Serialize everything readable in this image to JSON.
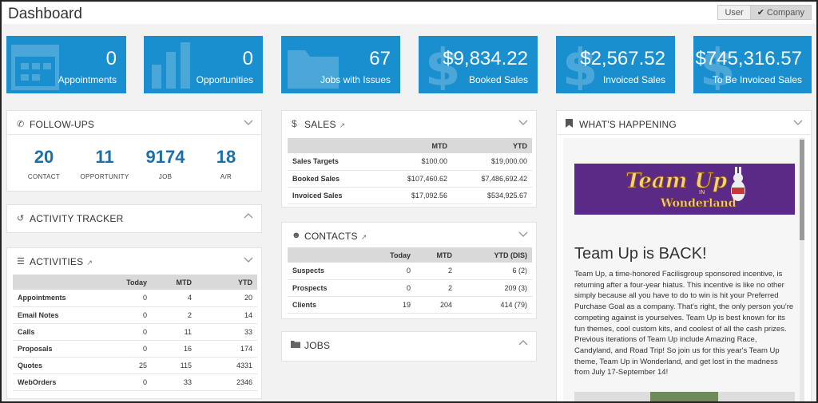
{
  "header": {
    "title": "Dashboard",
    "toggle_user": "User",
    "toggle_company": "Company"
  },
  "tiles": [
    {
      "value": "0",
      "label": "Appointments"
    },
    {
      "value": "0",
      "label": "Opportunities"
    },
    {
      "value": "67",
      "label": "Jobs with Issues"
    },
    {
      "value": "$9,834.22",
      "label": "Booked Sales"
    },
    {
      "value": "$2,567.52",
      "label": "Invoiced Sales"
    },
    {
      "value": "$745,316.57",
      "label": "To Be Invoiced Sales"
    }
  ],
  "followups": {
    "title": "FOLLOW-UPS",
    "items": [
      {
        "value": "20",
        "label": "CONTACT"
      },
      {
        "value": "11",
        "label": "OPPORTUNITY"
      },
      {
        "value": "9174",
        "label": "JOB"
      },
      {
        "value": "18",
        "label": "A/R"
      }
    ]
  },
  "activity_tracker": {
    "title": "ACTIVITY TRACKER"
  },
  "activities": {
    "title": "ACTIVITIES",
    "headers": [
      "",
      "Today",
      "MTD",
      "YTD"
    ],
    "rows": [
      [
        "Appointments",
        "0",
        "4",
        "20"
      ],
      [
        "Email Notes",
        "0",
        "2",
        "14"
      ],
      [
        "Calls",
        "0",
        "11",
        "33"
      ],
      [
        "Proposals",
        "0",
        "16",
        "174"
      ],
      [
        "Quotes",
        "25",
        "115",
        "4331"
      ],
      [
        "WebOrders",
        "0",
        "33",
        "2346"
      ]
    ]
  },
  "sales": {
    "title": "SALES",
    "headers": [
      "",
      "MTD",
      "YTD"
    ],
    "rows": [
      [
        "Sales Targets",
        "$100.00",
        "$19,000.00"
      ],
      [
        "Booked Sales",
        "$107,460.62",
        "$7,486,692.42"
      ],
      [
        "Invoiced Sales",
        "$17,092.56",
        "$534,925.67"
      ]
    ]
  },
  "contacts": {
    "title": "CONTACTS",
    "headers": [
      "",
      "Today",
      "MTD",
      "YTD (DIS)"
    ],
    "rows": [
      [
        "Suspects",
        "0",
        "2",
        "6 (2)"
      ],
      [
        "Prospects",
        "0",
        "2",
        "209 (3)"
      ],
      [
        "Clients",
        "19",
        "204",
        "414 (79)"
      ]
    ]
  },
  "jobs": {
    "title": "JOBS"
  },
  "whats_happening": {
    "title": "WHAT'S HAPPENING",
    "banner_line1": "Team Up",
    "banner_line2": "Wonderland",
    "banner_in": "IN",
    "news_title": "Team Up is BACK!",
    "news_body": "Team Up, a time-honored Facilisgroup sponsored incentive, is returning after a four-year hiatus. This incentive is like no other simply because all you have to do to win is hit your Preferred Purchase Goal as a company. That's right, the only person you're competing against is yourselves. Team Up is best known for its fun themes, cool custom kits, and coolest of all the cash prizes. Previous iterations of Team Up include Amazing Race, Candyland, and Road Trip! So join us for this year's Team Up theme, Team Up in Wonderland, and get lost in the madness from July 17-September 14!"
  },
  "colors": {
    "tile_blue": "#1a8fcf",
    "number_blue": "#1a6fa8",
    "banner_purple": "#5b2a86"
  }
}
